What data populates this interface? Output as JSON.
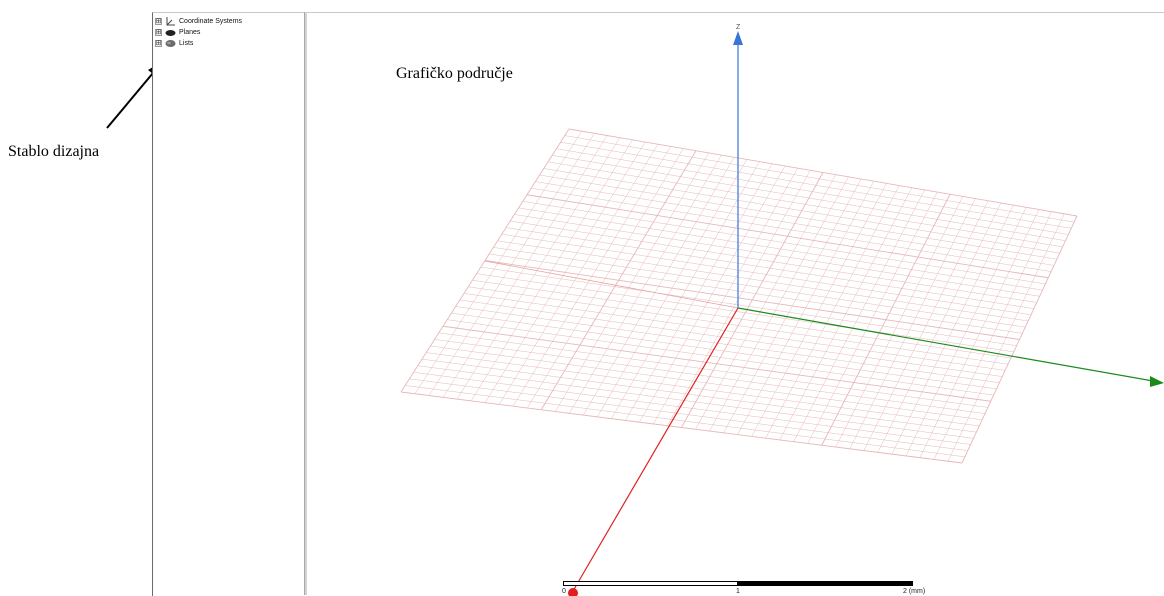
{
  "annotations": {
    "tree_label": "Stablo dizajna",
    "viewport_label": "Grafičko područje"
  },
  "design_tree": {
    "items": [
      {
        "label": "Coordinate Systems",
        "icon": "coordinate-systems-icon",
        "expander": "⊞"
      },
      {
        "label": "Planes",
        "icon": "planes-icon",
        "expander": "⊞"
      },
      {
        "label": "Lists",
        "icon": "lists-icon",
        "expander": "⊞"
      }
    ]
  },
  "viewport": {
    "axes": {
      "z_label": "Z",
      "x_color": "#e02020",
      "y_color": "#1a8a1a",
      "z_color": "#3b74d8"
    },
    "grid_color": "#e6b8b8"
  },
  "scale_bar": {
    "ticks": [
      "0",
      "1",
      "2 (mm)"
    ]
  }
}
